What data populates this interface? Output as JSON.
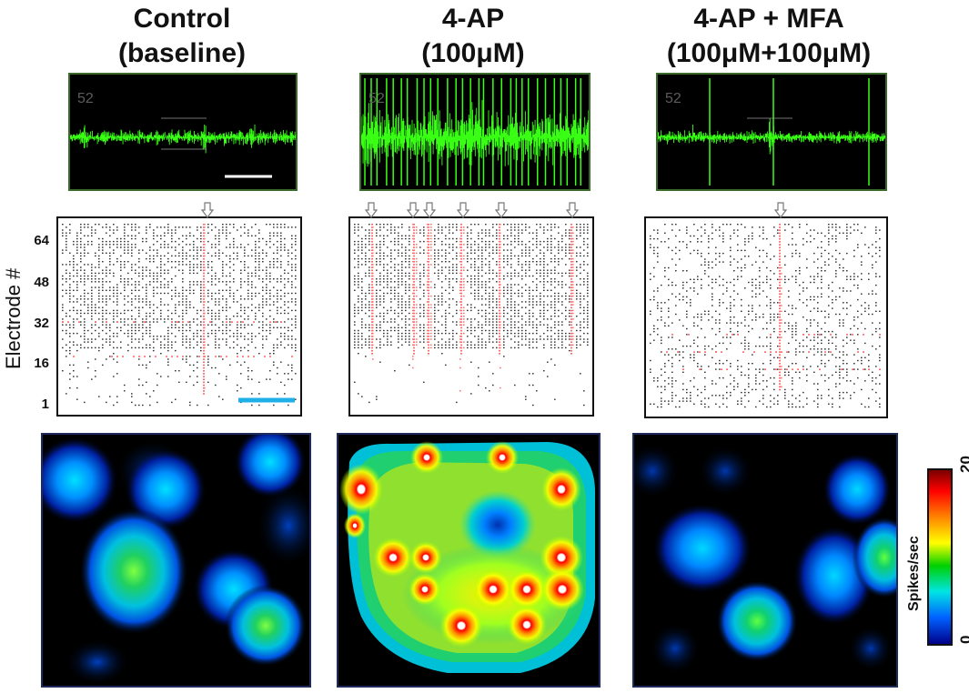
{
  "columns": [
    {
      "title_line1": "Control",
      "title_line2": "(baseline)",
      "channel": "52"
    },
    {
      "title_line1": "4-AP",
      "title_line2": "(100μM)",
      "channel": "52"
    },
    {
      "title_line1": "4-AP + MFA",
      "title_line2": "(100μM+100μM)",
      "channel": "52"
    }
  ],
  "raster": {
    "y_axis_title": "Electrode #",
    "y_ticks": [
      "64",
      "48",
      "32",
      "16",
      "1"
    ]
  },
  "colorbar": {
    "label": "Spikes/sec",
    "max_label": "20",
    "min_label": "0",
    "colors": [
      "#7a0000",
      "#ff0000",
      "#ff8c00",
      "#ffff00",
      "#00d000",
      "#00e5e5",
      "#0060ff",
      "#00008a"
    ]
  },
  "colors": {
    "trace": "#39ff14",
    "trace_border": "#3a6b2a",
    "sync_spike": "#ff6a6a",
    "scale_bar_trace": "#ffffff",
    "scale_bar_raster": "#1fb0e8"
  }
}
